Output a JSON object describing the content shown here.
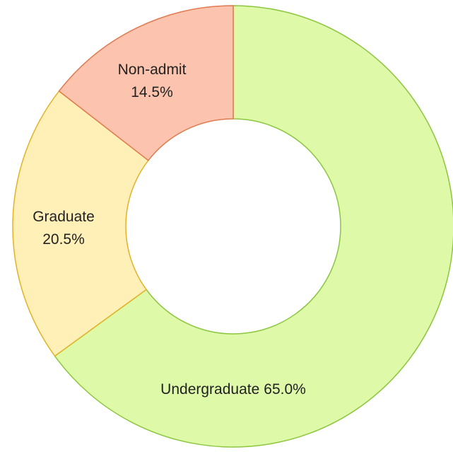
{
  "chart_data": {
    "type": "donut",
    "categories": [
      "Undergraduate",
      "Graduate",
      "Non-admit"
    ],
    "values": [
      65,
      20.5,
      14.5
    ],
    "value_labels": [
      "65.0%",
      "20.5%",
      "14.5%"
    ],
    "colors": [
      "#def9a8",
      "#fff0b8",
      "#fcc4ae"
    ],
    "stroke_colors": [
      "#8cc63f",
      "#e2b227",
      "#e07a50"
    ]
  }
}
